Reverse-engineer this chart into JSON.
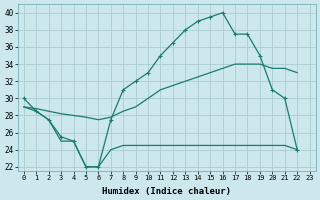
{
  "xlabel": "Humidex (Indice chaleur)",
  "color": "#1a7a6e",
  "bg_color": "#cce8ec",
  "grid_color": "#aaccd4",
  "ylim": [
    21.5,
    41
  ],
  "xlim": [
    -0.5,
    23.5
  ],
  "yticks": [
    22,
    24,
    26,
    28,
    30,
    32,
    34,
    36,
    38,
    40
  ],
  "xticks": [
    0,
    1,
    2,
    3,
    4,
    5,
    6,
    7,
    8,
    9,
    10,
    11,
    12,
    13,
    14,
    15,
    16,
    17,
    18,
    19,
    20,
    21,
    22,
    23
  ],
  "line_humidex_x": [
    0,
    1,
    2,
    3,
    4,
    5,
    6,
    7,
    8,
    9,
    10,
    11,
    12,
    13,
    14,
    15,
    16,
    17,
    18,
    19,
    20,
    21,
    22
  ],
  "line_humidex_y": [
    30,
    28.5,
    27.5,
    25.5,
    25,
    22,
    22,
    27.5,
    31,
    32,
    33,
    35,
    36.5,
    38,
    39,
    39.5,
    40,
    37.5,
    37.5,
    35,
    31,
    30,
    24
  ],
  "line_diag_x": [
    0,
    1,
    2,
    3,
    4,
    5,
    6,
    7,
    8,
    9,
    10,
    11,
    12,
    13,
    14,
    15,
    16,
    17,
    18,
    19,
    20,
    21,
    22
  ],
  "line_diag_y": [
    29,
    28.8,
    28.5,
    28.2,
    28,
    27.8,
    27.5,
    27.8,
    28.5,
    29,
    30,
    31,
    31.5,
    32,
    32.5,
    33,
    33.5,
    34,
    34,
    34,
    33.5,
    33.5,
    33
  ],
  "line_low_x": [
    0,
    1,
    2,
    3,
    4,
    5,
    6,
    7,
    8,
    9,
    10,
    11,
    12,
    13,
    14,
    15,
    16,
    17,
    18,
    19,
    20,
    21,
    22
  ],
  "line_low_y": [
    29,
    28.5,
    27.5,
    25,
    25,
    22,
    22,
    24,
    24.5,
    24.5,
    24.5,
    24.5,
    24.5,
    24.5,
    24.5,
    24.5,
    24.5,
    24.5,
    24.5,
    24.5,
    24.5,
    24.5,
    24
  ]
}
